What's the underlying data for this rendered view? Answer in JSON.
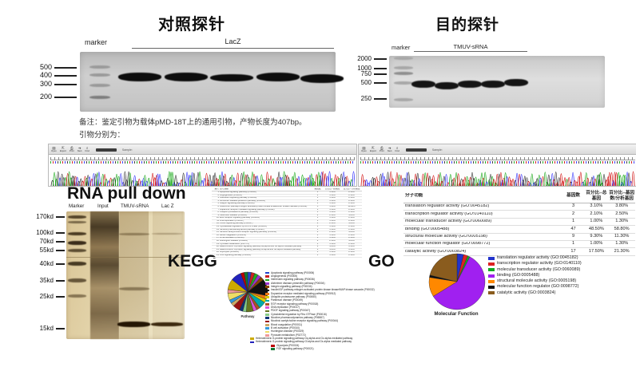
{
  "control_probe": {
    "title": "对照探针",
    "marker_label": "marker",
    "lane_label": "LacZ",
    "ladder": [
      "500",
      "400",
      "300",
      "200"
    ]
  },
  "target_probe": {
    "title": "目的探针",
    "marker_label": "marker",
    "lane_label": "TMUV-sRNA",
    "ladder": [
      "2000",
      "1000",
      "750",
      "500",
      "250"
    ]
  },
  "note": {
    "line1": "备注：鉴定引物为载体pMD-18T上的通用引物，产物长度为407bp。",
    "line2": "引物分别为："
  },
  "chromatogram": {
    "toolbar": [
      {
        "glyph": "▤",
        "label": "Open"
      },
      {
        "glyph": "⇱",
        "label": "Export"
      },
      {
        "glyph": "⎙",
        "label": "Print"
      },
      {
        "glyph": "➔",
        "label": "Next"
      },
      {
        "glyph": "⌕",
        "label": "Find"
      }
    ],
    "sample_label": "Sample:",
    "trace_colors": [
      "#00a000",
      "#d00000",
      "#2424ff",
      "#202020"
    ]
  },
  "pulldown": {
    "title": "RNA pull down",
    "lanes": [
      "Marker",
      "Input",
      "TMUV-sRNA",
      "Lac Z"
    ],
    "ladder": [
      "170kd",
      "100kd",
      "70kd",
      "55kd",
      "40kd",
      "35kd",
      "25kd",
      "15kd"
    ]
  },
  "kegg": {
    "label": "KEGG",
    "pie_label": "Pathway",
    "table": {
      "headers": [
        "编号",
        "信号通路",
        "基因数",
        "百分比--总基因",
        "百分比--分析基因"
      ],
      "rows": [
        [
          "1",
          "Apoptosis signaling pathway (P00006)",
          "1",
          "1.10%",
          "2.10%"
        ],
        [
          "2",
          "Angiogenesis (P00005)",
          "1",
          "1.10%",
          "2.10%"
        ],
        [
          "3",
          "Interleukin signaling pathway (P00036)",
          "1",
          "1.10%",
          "2.10%"
        ],
        [
          "4",
          "Alzheimer disease-presenilin pathway (P00004)",
          "1",
          "1.10%",
          "2.10%"
        ],
        [
          "5",
          "Integrin signalling pathway (P00034)",
          "1",
          "1.10%",
          "2.10%"
        ],
        [
          "6",
          "Insulin/IGF pathway-mitogen activated protein kinase kinase/MAP kinase cascade (P00032)",
          "5",
          "5.30%",
          "10.00%"
        ],
        [
          "7",
          "Dopamine receptor mediated signaling pathway (P05912)",
          "1",
          "1.10%",
          "2.10%"
        ],
        [
          "8",
          "Ubiquitin proteasome pathway (P00060)",
          "1",
          "1.10%",
          "2.10%"
        ],
        [
          "9",
          "Parkinson disease (P00049)",
          "2",
          "2.10%",
          "4.20%"
        ],
        [
          "10",
          "EGF receptor signaling pathway (P00018)",
          "1",
          "1.10%",
          "2.10%"
        ],
        [
          "11",
          "DNA replication (P00017)",
          "1",
          "1.10%",
          "2.10%"
        ],
        [
          "12",
          "PDGF signaling pathway (P00047)",
          "2",
          "2.10%",
          "4.20%"
        ],
        [
          "13",
          "Cytoskeletal regulation by Rho GTPase (P00016)",
          "1",
          "1.10%",
          "2.10%"
        ],
        [
          "14",
          "Nicotine pharmacodynamics pathway (P06587)",
          "1",
          "1.10%",
          "2.10%"
        ],
        [
          "15",
          "Nicotinic acetylcholine receptor signaling pathway (P00044)",
          "2",
          "2.10%",
          "4.20%"
        ],
        [
          "16",
          "Blood coagulation (P00011)",
          "1",
          "1.10%",
          "2.10%"
        ],
        [
          "17",
          "B cell activation (P00010)",
          "1",
          "1.10%",
          "2.10%"
        ],
        [
          "18",
          "Huntington disease (P00029)",
          "2",
          "2.10%",
          "4.20%"
        ],
        [
          "19",
          "Pyruvate metabolism (P02772)",
          "1",
          "1.10%",
          "2.10%"
        ],
        [
          "20",
          "Heterotrimeric G-protein signaling pathway-Gq alpha and Go alpha mediated pathway",
          "3",
          "3.20%",
          "6.30%"
        ],
        [
          "21",
          "Heterotrimeric G-protein signaling pathway-Gi alpha and Gs alpha mediated pathway",
          "3",
          "3.20%",
          "6.30%"
        ],
        [
          "22",
          "Glycolysis (P00024)",
          "1",
          "1.10%",
          "2.10%"
        ],
        [
          "23",
          "FGF signaling pathway (P00021)",
          "1",
          "1.10%",
          "2.10%"
        ]
      ]
    },
    "legend": [
      {
        "label": "Apoptosis signaling pathway (P00006)",
        "color": "#2244cc"
      },
      {
        "label": "Angiogenesis (P00005)",
        "color": "#cc2222"
      },
      {
        "label": "Interleukin signaling pathway (P00036)",
        "color": "#22aa22"
      },
      {
        "label": "Alzheimer disease-presenilin pathway (P00004)",
        "color": "#9933cc"
      },
      {
        "label": "Integrin signalling pathway (P00034)",
        "color": "#884400"
      },
      {
        "label": "Insulin/IGF pathway-mitogen activated protein kinase kinase/MAP kinase cascade (P00032)",
        "color": "#111111"
      },
      {
        "label": "Dopamine receptor mediated signaling pathway (P05912)",
        "color": "#ee7711"
      },
      {
        "label": "Ubiquitin proteasome pathway (P00060)",
        "color": "#ddcc00"
      },
      {
        "label": "Parkinson disease (P00049)",
        "color": "#00aaaa"
      },
      {
        "label": "EGF receptor signaling pathway (P00018)",
        "color": "#aa5522"
      },
      {
        "label": "DNA replication (P00017)",
        "color": "#dd55dd"
      },
      {
        "label": "PDGF signaling pathway (P00047)",
        "color": "#667722"
      },
      {
        "label": "Cytoskeletal regulation by Rho GTPase (P00016)",
        "color": "#88cc88"
      },
      {
        "label": "Nicotine pharmacodynamics pathway (P06587)",
        "color": "#113377"
      },
      {
        "label": "Nicotinic acetylcholine receptor signaling pathway (P00044)",
        "color": "#991111"
      },
      {
        "label": "Blood coagulation (P00011)",
        "color": "#ccaa66"
      },
      {
        "label": "B cell activation (P00010)",
        "color": "#3399dd"
      },
      {
        "label": "Huntington disease (P00029)",
        "color": "#eedd66"
      },
      {
        "label": "Pyruvate metabolism (P02772)",
        "color": "#ee9999"
      },
      {
        "label": "Heterotrimeric G-protein signaling pathway-Gq alpha and Go alpha mediated pathway",
        "color": "#ccaa00"
      },
      {
        "label": "Heterotrimeric G-protein signaling pathway-Gi alpha and Gs alpha mediated pathway",
        "color": "#2222bb"
      },
      {
        "label": "Glycolysis (P00024)",
        "color": "#bb0000"
      },
      {
        "label": "FGF signaling pathway (P00021)",
        "color": "#117733"
      }
    ]
  },
  "go": {
    "label": "GO",
    "pie_label": "Molecular Function",
    "table": {
      "headers": [
        "分子功能",
        "基因数",
        "百分比--总基因",
        "百分比--基因数/分析基因"
      ],
      "rows": [
        [
          "translation regulator activity (GO:0045182)",
          "3",
          "3.10%",
          "3.80%"
        ],
        [
          "transcription regulator activity (GO:0140110)",
          "2",
          "2.10%",
          "2.50%"
        ],
        [
          "molecular transducer activity (GO:0060089)",
          "1",
          "1.00%",
          "1.30%"
        ],
        [
          "binding (GO:0005488)",
          "47",
          "48.50%",
          "58.80%"
        ],
        [
          "structural molecule activity (GO:0005198)",
          "9",
          "9.30%",
          "11.30%"
        ],
        [
          "molecular function regulator (GO:0098772)",
          "1",
          "1.00%",
          "1.30%"
        ],
        [
          "catalytic activity (GO:0003824)",
          "17",
          "17.50%",
          "21.30%"
        ]
      ]
    },
    "legend": [
      {
        "label": "translation regulator activity (GO:0045182)",
        "color": "#2233cc"
      },
      {
        "label": "transcription regulator activity (GO:0140110)",
        "color": "#dd2222"
      },
      {
        "label": "molecular transducer activity (GO:0060089)",
        "color": "#11aa22"
      },
      {
        "label": "binding (GO:0005488)",
        "color": "#a020f0"
      },
      {
        "label": "structural molecule activity (GO:0005198)",
        "color": "#ff8800"
      },
      {
        "label": "molecular function regulator (GO:0098772)",
        "color": "#111111"
      },
      {
        "label": "catalytic activity (GO:0003824)",
        "color": "#8a5c1e"
      }
    ]
  },
  "chart_data": [
    {
      "type": "pie",
      "id": "kegg-pie",
      "title": "Pathway",
      "legend_position": "right",
      "labels": [
        "Apoptosis signaling pathway (P00006)",
        "Angiogenesis (P00005)",
        "Interleukin signaling pathway (P00036)",
        "Alzheimer disease-presenilin pathway (P00004)",
        "Integrin signalling pathway (P00034)",
        "Insulin/IGF pathway-mitogen activated protein kinase kinase/MAP kinase cascade (P00032)",
        "Dopamine receptor mediated signaling pathway (P05912)",
        "Ubiquitin proteasome pathway (P00060)",
        "Parkinson disease (P00049)",
        "EGF receptor signaling pathway (P00018)",
        "DNA replication (P00017)",
        "PDGF signaling pathway (P00047)",
        "Cytoskeletal regulation by Rho GTPase (P00016)",
        "Nicotine pharmacodynamics pathway (P06587)",
        "Nicotinic acetylcholine receptor signaling pathway (P00044)",
        "Blood coagulation (P00011)",
        "B cell activation (P00010)",
        "Huntington disease (P00029)",
        "Pyruvate metabolism (P02772)",
        "Heterotrimeric G-protein signaling pathway-Gq alpha and Go alpha mediated pathway",
        "Heterotrimeric G-protein signaling pathway-Gi alpha and Gs alpha mediated pathway",
        "Glycolysis (P00024)",
        "FGF signaling pathway (P00021)"
      ],
      "values": [
        2.1,
        2.1,
        2.1,
        2.1,
        2.1,
        10.0,
        2.1,
        2.1,
        4.2,
        2.1,
        2.1,
        4.2,
        2.1,
        2.1,
        4.2,
        2.1,
        2.1,
        4.2,
        2.1,
        6.3,
        6.3,
        2.1,
        2.1
      ],
      "colors": [
        "#2244cc",
        "#cc2222",
        "#22aa22",
        "#9933cc",
        "#884400",
        "#111111",
        "#ee7711",
        "#ddcc00",
        "#00aaaa",
        "#aa5522",
        "#dd55dd",
        "#667722",
        "#88cc88",
        "#113377",
        "#991111",
        "#ccaa66",
        "#3399dd",
        "#eedd66",
        "#ee9999",
        "#ccaa00",
        "#2222bb",
        "#bb0000",
        "#117733"
      ]
    },
    {
      "type": "pie",
      "id": "go-pie",
      "title": "Molecular Function",
      "legend_position": "right",
      "labels": [
        "translation regulator activity (GO:0045182)",
        "transcription regulator activity (GO:0140110)",
        "molecular transducer activity (GO:0060089)",
        "binding (GO:0005488)",
        "structural molecule activity (GO:0005198)",
        "molecular function regulator (GO:0098772)",
        "catalytic activity (GO:0003824)"
      ],
      "values": [
        3.8,
        2.5,
        1.3,
        58.8,
        11.3,
        1.3,
        21.3
      ],
      "colors": [
        "#2233cc",
        "#dd2222",
        "#11aa22",
        "#a020f0",
        "#ff8800",
        "#111111",
        "#8a5c1e"
      ]
    }
  ]
}
